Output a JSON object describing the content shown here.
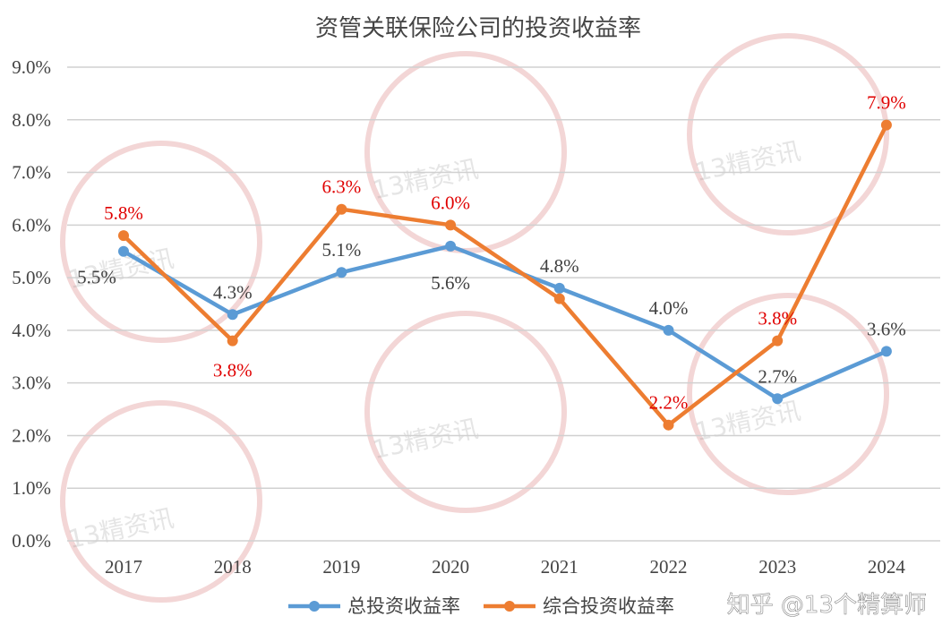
{
  "chart_data": {
    "type": "line",
    "title": "资管关联保险公司的投资收益率",
    "categories": [
      "2017",
      "2018",
      "2019",
      "2020",
      "2021",
      "2022",
      "2023",
      "2024"
    ],
    "ylim": [
      0,
      9
    ],
    "yticks": [
      "0.0%",
      "1.0%",
      "2.0%",
      "3.0%",
      "4.0%",
      "5.0%",
      "6.0%",
      "7.0%",
      "8.0%",
      "9.0%"
    ],
    "grid": true,
    "legend_position": "bottom",
    "series": [
      {
        "name": "总投资收益率",
        "color": "#5B9BD5",
        "values": [
          5.5,
          4.3,
          5.1,
          5.6,
          4.8,
          4.0,
          2.7,
          3.6
        ],
        "labels": [
          "5.5%",
          "4.3%",
          "5.1%",
          "5.6%",
          "4.8%",
          "4.0%",
          "2.7%",
          "3.6%"
        ],
        "label_color": "#404040"
      },
      {
        "name": "综合投资收益率",
        "color": "#ED7D31",
        "values": [
          5.8,
          3.8,
          6.3,
          6.0,
          4.6,
          2.2,
          3.8,
          7.9
        ],
        "labels": [
          "5.8%",
          "3.8%",
          "6.3%",
          "6.0%",
          "",
          "2.2%",
          "3.8%",
          "7.9%"
        ],
        "label_color": "#E00000"
      }
    ]
  },
  "watermark": "知乎 @13个精算师",
  "stamp_text": "13精资讯"
}
